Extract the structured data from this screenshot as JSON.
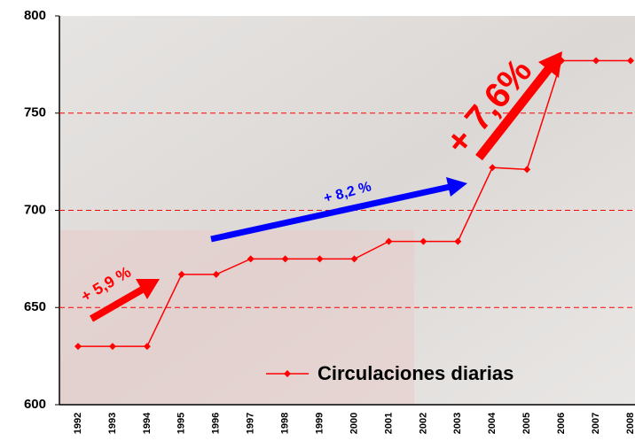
{
  "chart_data": {
    "type": "line",
    "categories": [
      "1992",
      "1993",
      "1994",
      "1995",
      "1996",
      "1997",
      "1998",
      "1999",
      "2000",
      "2001",
      "2002",
      "2003",
      "2004",
      "2005",
      "2006",
      "2007",
      "2008"
    ],
    "series": [
      {
        "name": "Circulaciones diarias",
        "color": "#ff0000",
        "values": [
          630,
          630,
          630,
          667,
          667,
          675,
          675,
          675,
          675,
          684,
          684,
          684,
          722,
          721,
          777,
          777,
          777
        ]
      }
    ],
    "ylim": [
      600,
      800
    ],
    "yticks": [
      600,
      650,
      700,
      750,
      800
    ],
    "grid": true,
    "grid_color": "#ff0000",
    "annotations": [
      "+ 5,9 %",
      "+ 8,2 %",
      "+ 7,6%"
    ]
  }
}
